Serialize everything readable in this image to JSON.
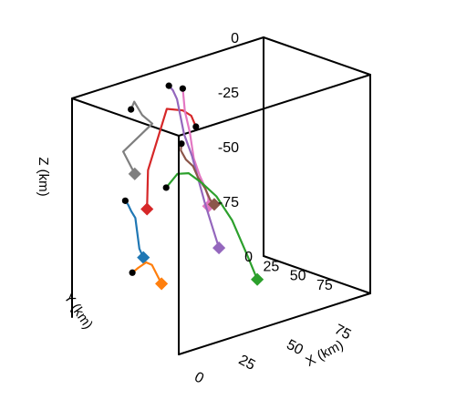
{
  "chart_data": {
    "type": "line3d",
    "title": "",
    "xlabel": "X (km)",
    "ylabel": "Y (km)",
    "zlabel": "Z (km)",
    "xlim": [
      0,
      100
    ],
    "ylim": [
      0,
      100
    ],
    "zlim": [
      -100,
      0
    ],
    "x_ticks": [
      {
        "value": 0,
        "label": "0"
      },
      {
        "value": 25,
        "label": "25"
      },
      {
        "value": 50,
        "label": "50"
      },
      {
        "value": 75,
        "label": "75"
      }
    ],
    "y_ticks": [
      {
        "value": 0,
        "label": "0"
      },
      {
        "value": 25,
        "label": "25"
      },
      {
        "value": 50,
        "label": "50"
      },
      {
        "value": 75,
        "label": "75"
      }
    ],
    "z_ticks": [
      {
        "value": 0,
        "label": "0"
      },
      {
        "value": -25,
        "label": "-25"
      },
      {
        "value": -50,
        "label": "-50"
      },
      {
        "value": -75,
        "label": "-75"
      }
    ],
    "grid": false,
    "legend": "none",
    "series": [
      {
        "color": "#7f7f7f",
        "x": [
          28,
          28,
          30,
          33,
          10,
          6
        ],
        "y": [
          5,
          8,
          12,
          16,
          30,
          48
        ],
        "z": [
          -12,
          -8,
          -14,
          -18,
          -22,
          -28
        ]
      },
      {
        "color": "#d62728",
        "x": [
          63,
          60,
          55,
          45,
          33,
          28
        ],
        "y": [
          3,
          4,
          5,
          8,
          12,
          20
        ],
        "z": [
          -30,
          -24,
          -20,
          -16,
          -40,
          -55
        ]
      },
      {
        "color": "#e377c2",
        "x": [
          55,
          55,
          57,
          58,
          60,
          61,
          62,
          60,
          59
        ],
        "y": [
          5,
          7,
          8,
          10,
          12,
          15,
          18,
          20,
          22
        ],
        "z": [
          -10,
          -20,
          -30,
          -42,
          -50,
          -55,
          -62,
          -58,
          -62
        ]
      },
      {
        "color": "#9467bd",
        "x": [
          50,
          51,
          52,
          54,
          56,
          57,
          58,
          59,
          60
        ],
        "y": [
          1,
          3,
          5,
          8,
          12,
          16,
          20,
          25,
          30
        ],
        "z": [
          -8,
          -10,
          -14,
          -30,
          -40,
          -50,
          -60,
          -70,
          -80
        ]
      },
      {
        "color": "#8c564b",
        "x": [
          56,
          54,
          55,
          57,
          58,
          60,
          61,
          62
        ],
        "y": [
          2,
          5,
          8,
          11,
          14,
          17,
          20,
          22
        ],
        "z": [
          -36,
          -38,
          -42,
          -45,
          -50,
          -55,
          -60,
          -62
        ]
      },
      {
        "color": "#2ca02c",
        "x": [
          38,
          45,
          52,
          58,
          62,
          68,
          75,
          80
        ],
        "y": [
          20,
          18,
          16,
          18,
          24,
          28,
          30,
          30
        ],
        "z": [
          -48,
          -44,
          -46,
          -52,
          -58,
          -70,
          -88,
          -100
        ]
      },
      {
        "color": "#1f77b4",
        "x": [
          20,
          21,
          22,
          23,
          24,
          25
        ],
        "y": [
          14,
          15,
          16,
          18,
          20,
          22
        ],
        "z": [
          -50,
          -52,
          -55,
          -58,
          -72,
          -76
        ]
      },
      {
        "color": "#ff7f0e",
        "x": [
          17,
          19,
          22,
          25,
          28,
          30
        ],
        "y": [
          26,
          28,
          30,
          30,
          30,
          30
        ],
        "z": [
          -80,
          -78,
          -76,
          -78,
          -84,
          -88
        ]
      }
    ]
  }
}
